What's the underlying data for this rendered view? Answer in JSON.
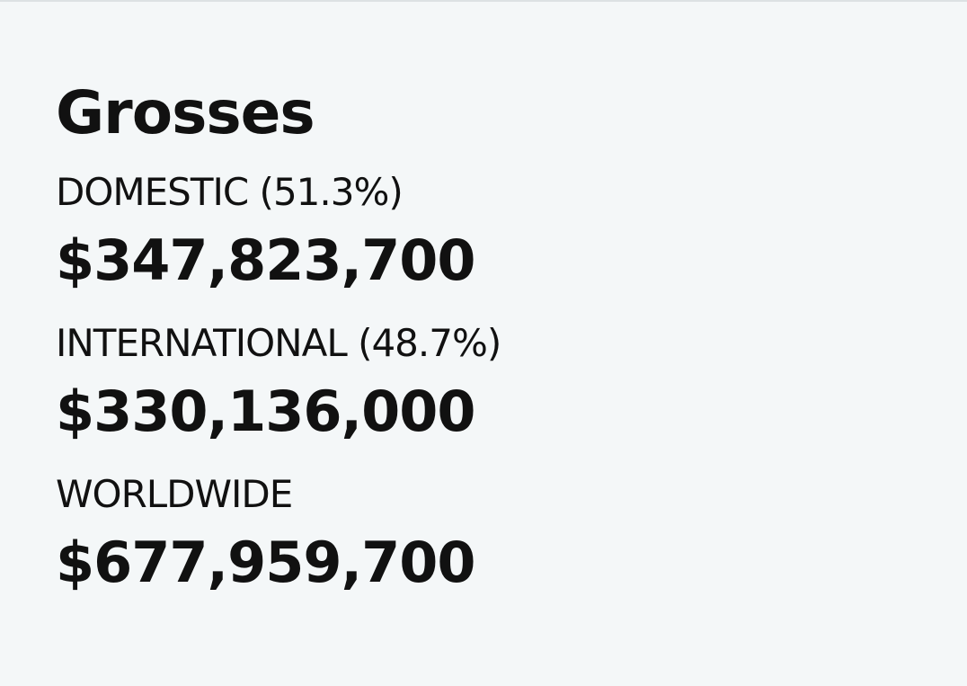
{
  "header": {
    "title": "Grosses"
  },
  "rows": [
    {
      "label": "DOMESTIC (51.3%)",
      "value": "$347,823,700"
    },
    {
      "label": "INTERNATIONAL (48.7%)",
      "value": "$330,136,000"
    },
    {
      "label": "WORLDWIDE",
      "value": "$677,959,700"
    }
  ]
}
